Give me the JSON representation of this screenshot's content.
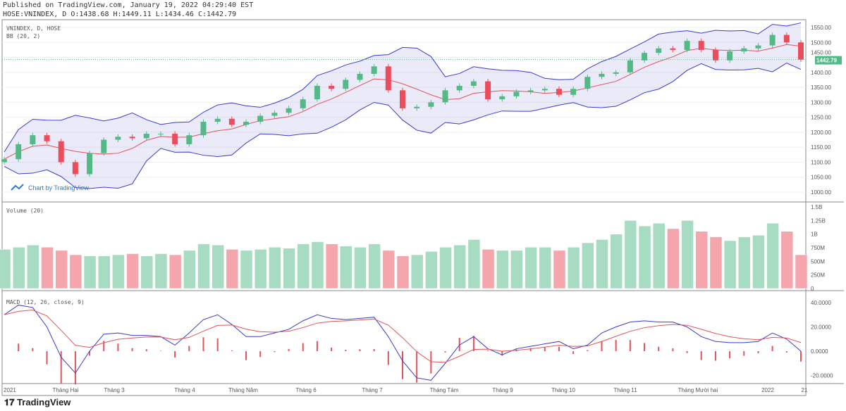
{
  "header": {
    "published": "Published on TradingView.com, January 19, 2022 04:29:40 EST",
    "ohlc": "HOSE:VNINDEX, D O:1438.68 H:1449.11 L:1434.46 C:1442.79"
  },
  "logo": "TradingView",
  "watermark": "Chart by TradingView",
  "colors": {
    "up": "#53b987",
    "down": "#eb4d5c",
    "bb_band": "#3b3bcc",
    "bb_basis": "#e0545a",
    "macd": "#3b3bcc",
    "signal": "#e0545a",
    "vol_up": "#a8dcc2",
    "vol_down": "#f5a6ad",
    "last_price": "#53b987"
  },
  "chart_data": [
    {
      "type": "candlestick",
      "pane": "price",
      "legend": [
        "VNINDEX, D, HOSE",
        "BB (20, 2)"
      ],
      "x_range": [
        "2021-01-04",
        "2022-01-19"
      ],
      "y_ticks": [
        "1550.00",
        "1500.00",
        "1450.00",
        "1400.00",
        "1350.00",
        "1300.00",
        "1250.00",
        "1200.00",
        "1150.00",
        "1100.00",
        "1050.00",
        "1000.00"
      ],
      "ylim": [
        1000,
        1550
      ],
      "last_price": "1442.79",
      "close": [
        1110,
        1160,
        1190,
        1170,
        1100,
        1060,
        1130,
        1175,
        1185,
        1180,
        1195,
        1195,
        1160,
        1190,
        1235,
        1245,
        1225,
        1235,
        1255,
        1265,
        1280,
        1310,
        1355,
        1345,
        1375,
        1395,
        1420,
        1340,
        1280,
        1285,
        1300,
        1340,
        1355,
        1370,
        1310,
        1320,
        1335,
        1340,
        1345,
        1325,
        1345,
        1385,
        1395,
        1400,
        1440,
        1465,
        1480,
        1475,
        1505,
        1475,
        1440,
        1470,
        1480,
        1490,
        1525,
        1500,
        1442.79
      ]
    },
    {
      "type": "bar",
      "pane": "volume",
      "legend": "Volume (20)",
      "y_ticks": [
        "1.5B",
        "1.25B",
        "1B",
        "750M",
        "500M",
        "250M",
        "0"
      ],
      "ylim": [
        0,
        1500
      ],
      "values": [
        720,
        760,
        800,
        760,
        700,
        620,
        600,
        600,
        620,
        640,
        600,
        640,
        620,
        700,
        820,
        800,
        720,
        700,
        720,
        760,
        740,
        820,
        860,
        820,
        780,
        760,
        820,
        700,
        600,
        620,
        680,
        760,
        800,
        900,
        720,
        700,
        700,
        760,
        760,
        700,
        760,
        840,
        900,
        1000,
        1250,
        1150,
        1200,
        1100,
        1250,
        1050,
        950,
        880,
        950,
        980,
        1200,
        1050,
        620
      ]
    },
    {
      "type": "line",
      "pane": "macd",
      "legend": "MACD (12, 26, close, 9)",
      "y_ticks": [
        "40.0000",
        "20.0000",
        "0.0000",
        "-20.0000"
      ],
      "ylim": [
        -27,
        45
      ],
      "macd": [
        30,
        38,
        36,
        20,
        -5,
        -18,
        0,
        14,
        15,
        13,
        13,
        12,
        5,
        15,
        26,
        30,
        22,
        12,
        12,
        15,
        18,
        25,
        30,
        27,
        26,
        27,
        28,
        12,
        -8,
        -22,
        -24,
        -10,
        5,
        12,
        2,
        -3,
        2,
        4,
        6,
        8,
        2,
        5,
        15,
        20,
        24,
        25,
        24,
        24,
        20,
        12,
        8,
        7,
        7,
        8,
        15,
        10,
        0
      ]
    },
    {
      "type": "axis",
      "x_ticks": [
        "2021",
        "Tháng Hai",
        "Tháng 3",
        "Tháng 4",
        "Tháng Năm",
        "Tháng 6",
        "Tháng 7",
        "Tháng Tám",
        "Tháng 9",
        "Tháng 10",
        "Tháng 11",
        "Tháng Mười hai",
        "2022",
        "21"
      ]
    }
  ]
}
